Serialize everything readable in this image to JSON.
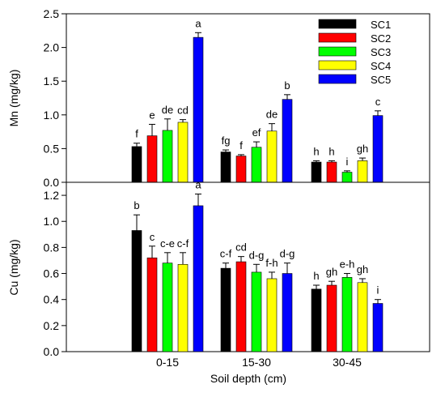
{
  "chart_data": [
    {
      "type": "bar",
      "categories": [
        "0-15",
        "15-30",
        "30-45"
      ],
      "ylabel": "Mn (mg/kg)",
      "ylim": [
        0,
        2.5
      ],
      "yticks": [
        "0.0",
        "0.5",
        "1.0",
        "1.5",
        "2.0",
        "2.5"
      ],
      "series": [
        {
          "name": "SC1",
          "color": "#000000",
          "values": [
            0.53,
            0.45,
            0.3
          ],
          "errors": [
            0.05,
            0.03,
            0.02
          ],
          "labels": [
            "f",
            "fg",
            "h"
          ]
        },
        {
          "name": "SC2",
          "color": "#ff0000",
          "values": [
            0.69,
            0.39,
            0.3
          ],
          "errors": [
            0.17,
            0.02,
            0.02
          ],
          "labels": [
            "e",
            "f",
            "h"
          ]
        },
        {
          "name": "SC3",
          "color": "#00ff00",
          "values": [
            0.77,
            0.52,
            0.15
          ],
          "errors": [
            0.17,
            0.08,
            0.02
          ],
          "labels": [
            "de",
            "ef",
            "i"
          ]
        },
        {
          "name": "SC4",
          "color": "#ffff00",
          "values": [
            0.89,
            0.76,
            0.32
          ],
          "errors": [
            0.04,
            0.11,
            0.04
          ],
          "labels": [
            "cd",
            "de",
            "gh"
          ]
        },
        {
          "name": "SC5",
          "color": "#0000ff",
          "values": [
            2.15,
            1.23,
            0.99
          ],
          "errors": [
            0.07,
            0.07,
            0.07
          ],
          "labels": [
            "a",
            "b",
            "c"
          ]
        }
      ],
      "legend": {
        "position": "top-right",
        "entries": [
          "SC1",
          "SC2",
          "SC3",
          "SC4",
          "SC5"
        ]
      }
    },
    {
      "type": "bar",
      "categories": [
        "0-15",
        "15-30",
        "30-45"
      ],
      "xlabel": "Soil depth (cm)",
      "ylabel": "Cu (mg/kg)",
      "ylim": [
        0,
        1.3
      ],
      "yticks": [
        "0.0",
        "0.2",
        "0.4",
        "0.6",
        "0.8",
        "1.0",
        "1.2"
      ],
      "series": [
        {
          "name": "SC1",
          "color": "#000000",
          "values": [
            0.93,
            0.64,
            0.48
          ],
          "errors": [
            0.12,
            0.04,
            0.03
          ],
          "labels": [
            "b",
            "c-f",
            "h"
          ]
        },
        {
          "name": "SC2",
          "color": "#ff0000",
          "values": [
            0.72,
            0.69,
            0.51
          ],
          "errors": [
            0.09,
            0.04,
            0.03
          ],
          "labels": [
            "c",
            "cd",
            "gh"
          ]
        },
        {
          "name": "SC3",
          "color": "#00ff00",
          "values": [
            0.68,
            0.61,
            0.57
          ],
          "errors": [
            0.08,
            0.06,
            0.03
          ],
          "labels": [
            "c-e",
            "d-g",
            "e-h"
          ]
        },
        {
          "name": "SC4",
          "color": "#ffff00",
          "values": [
            0.67,
            0.56,
            0.53
          ],
          "errors": [
            0.09,
            0.05,
            0.03
          ],
          "labels": [
            "c-f",
            "f-h",
            "gh"
          ]
        },
        {
          "name": "SC5",
          "color": "#0000ff",
          "values": [
            1.12,
            0.6,
            0.37
          ],
          "errors": [
            0.09,
            0.08,
            0.03
          ],
          "labels": [
            "a",
            "d-g",
            "i"
          ]
        }
      ]
    }
  ]
}
